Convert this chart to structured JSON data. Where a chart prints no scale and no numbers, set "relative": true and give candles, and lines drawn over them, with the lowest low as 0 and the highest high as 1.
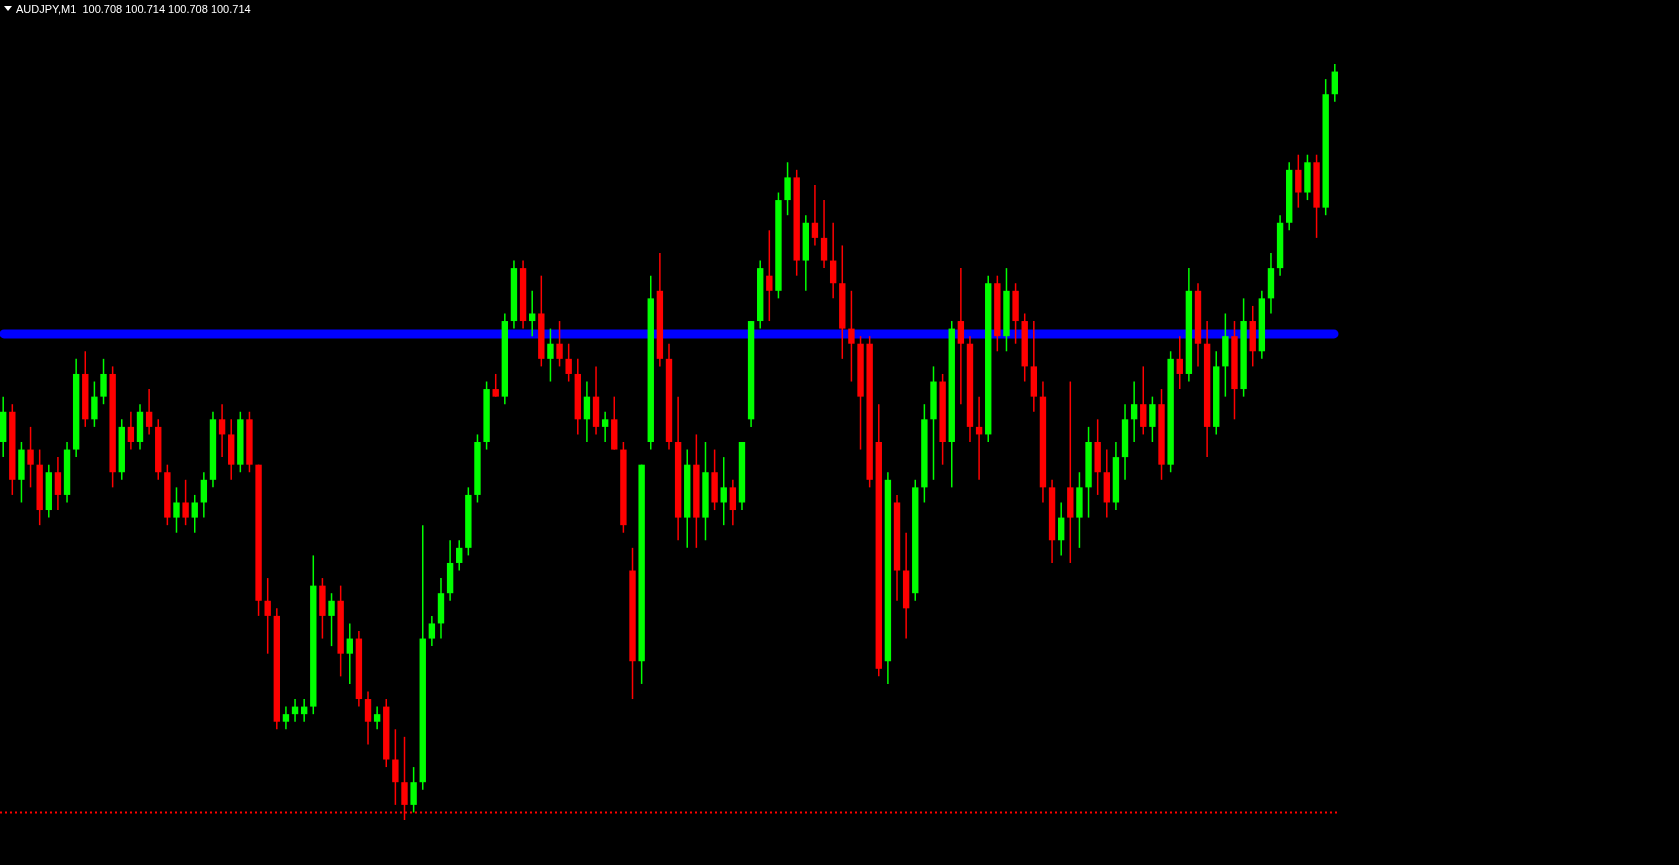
{
  "chart_data": {
    "type": "candlestick",
    "title": "AUDJPY,M1  100.708 100.714 100.708 100.714",
    "relative": true,
    "categories": [
      null,
      null,
      null,
      null,
      null,
      null,
      null,
      null,
      null,
      null,
      null,
      null,
      null,
      null,
      null,
      null,
      null,
      null,
      null,
      null,
      null,
      null,
      null,
      null,
      null,
      null,
      null,
      null,
      null,
      null,
      null,
      null,
      null,
      null,
      null,
      null,
      null,
      null,
      null,
      null,
      null,
      null,
      null,
      null,
      null,
      null,
      null,
      null,
      null,
      null,
      null,
      null,
      null,
      null,
      null,
      null,
      null,
      null,
      null,
      null,
      null,
      null,
      null,
      null,
      null,
      null,
      null,
      null,
      null,
      null,
      null,
      null,
      null,
      null,
      null,
      null,
      null,
      null,
      null,
      null,
      null,
      null,
      null,
      null,
      null,
      null,
      null,
      null,
      null,
      null,
      null,
      null,
      null,
      null,
      null,
      null,
      null,
      null,
      null,
      null,
      null,
      null,
      null,
      null,
      null,
      null,
      null,
      null,
      null,
      null,
      null,
      null,
      null,
      null,
      null,
      null,
      null,
      null,
      null,
      null,
      null,
      null,
      null,
      null,
      null,
      null,
      null,
      null,
      null,
      null,
      null,
      null,
      null,
      null,
      null,
      null,
      null,
      null,
      null,
      null,
      null,
      null,
      null,
      null,
      null,
      null,
      null
    ],
    "ohlc": [
      [
        0.5,
        0.56,
        0.48,
        0.54
      ],
      [
        0.54,
        0.55,
        0.43,
        0.45
      ],
      [
        0.45,
        0.5,
        0.42,
        0.49
      ],
      [
        0.49,
        0.52,
        0.44,
        0.47
      ],
      [
        0.47,
        0.49,
        0.39,
        0.41
      ],
      [
        0.41,
        0.47,
        0.4,
        0.46
      ],
      [
        0.46,
        0.48,
        0.41,
        0.43
      ],
      [
        0.43,
        0.5,
        0.42,
        0.49
      ],
      [
        0.49,
        0.61,
        0.48,
        0.59
      ],
      [
        0.59,
        0.62,
        0.52,
        0.53
      ],
      [
        0.53,
        0.58,
        0.52,
        0.56
      ],
      [
        0.56,
        0.61,
        0.55,
        0.59
      ],
      [
        0.59,
        0.6,
        0.44,
        0.46
      ],
      [
        0.46,
        0.53,
        0.45,
        0.52
      ],
      [
        0.52,
        0.54,
        0.49,
        0.5
      ],
      [
        0.5,
        0.55,
        0.49,
        0.54
      ],
      [
        0.54,
        0.57,
        0.51,
        0.52
      ],
      [
        0.52,
        0.53,
        0.45,
        0.46
      ],
      [
        0.46,
        0.47,
        0.39,
        0.4
      ],
      [
        0.4,
        0.44,
        0.38,
        0.42
      ],
      [
        0.42,
        0.45,
        0.39,
        0.4
      ],
      [
        0.4,
        0.43,
        0.38,
        0.42
      ],
      [
        0.42,
        0.46,
        0.4,
        0.45
      ],
      [
        0.45,
        0.54,
        0.44,
        0.53
      ],
      [
        0.53,
        0.55,
        0.48,
        0.51
      ],
      [
        0.51,
        0.53,
        0.45,
        0.47
      ],
      [
        0.47,
        0.54,
        0.46,
        0.53
      ],
      [
        0.53,
        0.54,
        0.46,
        0.47
      ],
      [
        0.47,
        0.47,
        0.27,
        0.29
      ],
      [
        0.29,
        0.32,
        0.22,
        0.27
      ],
      [
        0.27,
        0.28,
        0.12,
        0.13
      ],
      [
        0.13,
        0.15,
        0.12,
        0.14
      ],
      [
        0.14,
        0.16,
        0.13,
        0.15
      ],
      [
        0.14,
        0.16,
        0.13,
        0.15
      ],
      [
        0.15,
        0.35,
        0.14,
        0.31
      ],
      [
        0.31,
        0.32,
        0.24,
        0.27
      ],
      [
        0.27,
        0.3,
        0.23,
        0.29
      ],
      [
        0.29,
        0.31,
        0.19,
        0.22
      ],
      [
        0.22,
        0.26,
        0.18,
        0.24
      ],
      [
        0.24,
        0.25,
        0.15,
        0.16
      ],
      [
        0.16,
        0.17,
        0.1,
        0.13
      ],
      [
        0.13,
        0.15,
        0.12,
        0.14
      ],
      [
        0.15,
        0.16,
        0.07,
        0.08
      ],
      [
        0.08,
        0.12,
        0.02,
        0.05
      ],
      [
        0.05,
        0.11,
        0.0,
        0.02
      ],
      [
        0.02,
        0.07,
        0.01,
        0.05
      ],
      [
        0.05,
        0.39,
        0.04,
        0.24
      ],
      [
        0.24,
        0.27,
        0.23,
        0.26
      ],
      [
        0.26,
        0.32,
        0.24,
        0.3
      ],
      [
        0.3,
        0.37,
        0.29,
        0.34
      ],
      [
        0.34,
        0.37,
        0.33,
        0.36
      ],
      [
        0.36,
        0.44,
        0.35,
        0.43
      ],
      [
        0.43,
        0.51,
        0.42,
        0.5
      ],
      [
        0.5,
        0.58,
        0.49,
        0.57
      ],
      [
        0.57,
        0.59,
        0.56,
        0.56
      ],
      [
        0.56,
        0.67,
        0.55,
        0.66
      ],
      [
        0.66,
        0.74,
        0.65,
        0.73
      ],
      [
        0.73,
        0.74,
        0.65,
        0.66
      ],
      [
        0.66,
        0.7,
        0.64,
        0.67
      ],
      [
        0.67,
        0.72,
        0.6,
        0.61
      ],
      [
        0.61,
        0.65,
        0.58,
        0.63
      ],
      [
        0.63,
        0.66,
        0.6,
        0.61
      ],
      [
        0.61,
        0.63,
        0.58,
        0.59
      ],
      [
        0.59,
        0.61,
        0.51,
        0.53
      ],
      [
        0.53,
        0.58,
        0.5,
        0.56
      ],
      [
        0.56,
        0.6,
        0.51,
        0.52
      ],
      [
        0.52,
        0.54,
        0.5,
        0.53
      ],
      [
        0.53,
        0.56,
        0.49,
        0.49
      ],
      [
        0.49,
        0.5,
        0.38,
        0.39
      ],
      [
        0.33,
        0.36,
        0.16,
        0.21
      ],
      [
        0.21,
        0.47,
        0.18,
        0.47
      ],
      [
        0.5,
        0.72,
        0.49,
        0.69
      ],
      [
        0.7,
        0.75,
        0.6,
        0.61
      ],
      [
        0.61,
        0.63,
        0.49,
        0.5
      ],
      [
        0.5,
        0.56,
        0.37,
        0.4
      ],
      [
        0.4,
        0.49,
        0.36,
        0.47
      ],
      [
        0.47,
        0.51,
        0.36,
        0.4
      ],
      [
        0.4,
        0.5,
        0.37,
        0.46
      ],
      [
        0.46,
        0.49,
        0.41,
        0.42
      ],
      [
        0.42,
        0.48,
        0.39,
        0.44
      ],
      [
        0.44,
        0.45,
        0.39,
        0.41
      ],
      [
        0.42,
        0.5,
        0.41,
        0.5
      ],
      [
        0.53,
        0.66,
        0.52,
        0.66
      ],
      [
        0.66,
        0.74,
        0.65,
        0.73
      ],
      [
        0.72,
        0.78,
        0.66,
        0.7
      ],
      [
        0.7,
        0.83,
        0.69,
        0.82
      ],
      [
        0.82,
        0.87,
        0.8,
        0.85
      ],
      [
        0.85,
        0.86,
        0.72,
        0.74
      ],
      [
        0.74,
        0.8,
        0.7,
        0.79
      ],
      [
        0.79,
        0.84,
        0.76,
        0.77
      ],
      [
        0.77,
        0.82,
        0.73,
        0.74
      ],
      [
        0.74,
        0.79,
        0.69,
        0.71
      ],
      [
        0.71,
        0.76,
        0.61,
        0.65
      ],
      [
        0.65,
        0.7,
        0.58,
        0.63
      ],
      [
        0.63,
        0.64,
        0.49,
        0.56
      ],
      [
        0.63,
        0.64,
        0.44,
        0.45
      ],
      [
        0.5,
        0.55,
        0.19,
        0.2
      ],
      [
        0.21,
        0.46,
        0.18,
        0.45
      ],
      [
        0.42,
        0.43,
        0.29,
        0.33
      ],
      [
        0.33,
        0.38,
        0.24,
        0.28
      ],
      [
        0.3,
        0.45,
        0.29,
        0.44
      ],
      [
        0.44,
        0.55,
        0.42,
        0.53
      ],
      [
        0.53,
        0.6,
        0.45,
        0.58
      ],
      [
        0.58,
        0.59,
        0.47,
        0.5
      ],
      [
        0.5,
        0.66,
        0.44,
        0.65
      ],
      [
        0.66,
        0.73,
        0.55,
        0.63
      ],
      [
        0.63,
        0.64,
        0.5,
        0.52
      ],
      [
        0.52,
        0.56,
        0.45,
        0.51
      ],
      [
        0.51,
        0.72,
        0.5,
        0.71
      ],
      [
        0.71,
        0.72,
        0.62,
        0.64
      ],
      [
        0.64,
        0.73,
        0.62,
        0.7
      ],
      [
        0.7,
        0.71,
        0.63,
        0.66
      ],
      [
        0.66,
        0.67,
        0.58,
        0.6
      ],
      [
        0.6,
        0.66,
        0.54,
        0.56
      ],
      [
        0.56,
        0.58,
        0.42,
        0.44
      ],
      [
        0.44,
        0.45,
        0.34,
        0.37
      ],
      [
        0.37,
        0.42,
        0.35,
        0.4
      ],
      [
        0.44,
        0.58,
        0.34,
        0.4
      ],
      [
        0.4,
        0.46,
        0.36,
        0.44
      ],
      [
        0.44,
        0.52,
        0.4,
        0.5
      ],
      [
        0.5,
        0.53,
        0.43,
        0.46
      ],
      [
        0.46,
        0.49,
        0.4,
        0.42
      ],
      [
        0.42,
        0.5,
        0.41,
        0.48
      ],
      [
        0.48,
        0.55,
        0.45,
        0.53
      ],
      [
        0.53,
        0.58,
        0.5,
        0.55
      ],
      [
        0.55,
        0.6,
        0.51,
        0.52
      ],
      [
        0.52,
        0.56,
        0.5,
        0.55
      ],
      [
        0.55,
        0.57,
        0.45,
        0.47
      ],
      [
        0.47,
        0.62,
        0.46,
        0.61
      ],
      [
        0.61,
        0.64,
        0.57,
        0.59
      ],
      [
        0.59,
        0.73,
        0.58,
        0.7
      ],
      [
        0.7,
        0.71,
        0.6,
        0.63
      ],
      [
        0.63,
        0.66,
        0.48,
        0.52
      ],
      [
        0.52,
        0.62,
        0.51,
        0.6
      ],
      [
        0.6,
        0.67,
        0.56,
        0.64
      ],
      [
        0.64,
        0.66,
        0.53,
        0.57
      ],
      [
        0.57,
        0.69,
        0.56,
        0.66
      ],
      [
        0.66,
        0.68,
        0.6,
        0.62
      ],
      [
        0.62,
        0.7,
        0.61,
        0.69
      ],
      [
        0.69,
        0.75,
        0.67,
        0.73
      ],
      [
        0.73,
        0.8,
        0.72,
        0.79
      ],
      [
        0.79,
        0.87,
        0.78,
        0.86
      ],
      [
        0.86,
        0.88,
        0.81,
        0.83
      ],
      [
        0.83,
        0.88,
        0.82,
        0.87
      ],
      [
        0.87,
        0.88,
        0.77,
        0.81
      ],
      [
        0.81,
        0.98,
        0.8,
        0.96
      ],
      [
        0.96,
        1.0,
        0.95,
        0.99
      ]
    ],
    "colors": [
      "#00ff00",
      "#ff0000",
      "#00ff00",
      "#ff0000",
      "#ff0000",
      "#00ff00",
      "#ff0000",
      "#00ff00",
      "#00ff00",
      "#ff0000",
      "#00ff00",
      "#00ff00",
      "#ff0000",
      "#00ff00",
      "#ff0000",
      "#00ff00",
      "#ff0000",
      "#ff0000",
      "#ff0000",
      "#00ff00",
      "#ff0000",
      "#00ff00",
      "#00ff00",
      "#00ff00",
      "#ff0000",
      "#ff0000",
      "#00ff00",
      "#ff0000",
      "#ff0000",
      "#ff0000",
      "#ff0000",
      "#00ff00",
      "#00ff00",
      "#00ff00",
      "#00ff00",
      "#ff0000",
      "#00ff00",
      "#ff0000",
      "#00ff00",
      "#ff0000",
      "#ff0000",
      "#00ff00",
      "#ff0000",
      "#ff0000",
      "#ff0000",
      "#00ff00",
      "#00ff00",
      "#00ff00",
      "#00ff00",
      "#00ff00",
      "#00ff00",
      "#00ff00",
      "#00ff00",
      "#00ff00",
      "#ff0000",
      "#00ff00",
      "#00ff00",
      "#ff0000",
      "#00ff00",
      "#ff0000",
      "#00ff00",
      "#ff0000",
      "#ff0000",
      "#ff0000",
      "#00ff00",
      "#ff0000",
      "#00ff00",
      "#ff0000",
      "#ff0000",
      "#ff0000",
      "#00ff00",
      "#00ff00",
      "#ff0000",
      "#ff0000",
      "#ff0000",
      "#00ff00",
      "#ff0000",
      "#00ff00",
      "#ff0000",
      "#00ff00",
      "#ff0000",
      "#00ff00",
      "#00ff00",
      "#00ff00",
      "#ff0000",
      "#00ff00",
      "#00ff00",
      "#ff0000",
      "#00ff00",
      "#ff0000",
      "#ff0000",
      "#ff0000",
      "#ff0000",
      "#ff0000",
      "#ff0000",
      "#ff0000",
      "#ff0000",
      "#00ff00",
      "#ff0000",
      "#ff0000",
      "#00ff00",
      "#00ff00",
      "#00ff00",
      "#ff0000",
      "#00ff00",
      "#ff0000",
      "#ff0000",
      "#ff0000",
      "#00ff00",
      "#ff0000",
      "#00ff00",
      "#ff0000",
      "#ff0000",
      "#ff0000",
      "#ff0000",
      "#ff0000",
      "#00ff00",
      "#ff0000",
      "#00ff00",
      "#00ff00",
      "#ff0000",
      "#ff0000",
      "#00ff00",
      "#00ff00",
      "#00ff00",
      "#ff0000",
      "#00ff00",
      "#ff0000",
      "#00ff00",
      "#ff0000",
      "#00ff00",
      "#ff0000",
      "#ff0000",
      "#00ff00",
      "#00ff00",
      "#ff0000",
      "#00ff00",
      "#ff0000",
      "#00ff00",
      "#00ff00",
      "#00ff00",
      "#00ff00",
      "#ff0000",
      "#00ff00",
      "#ff0000",
      "#00ff00",
      "#00ff00"
    ],
    "ref_lines": [
      {
        "axis": "y",
        "value": 0.643,
        "color": "#0000ff",
        "line_style": "solid"
      },
      {
        "axis": "y",
        "value": 0.01,
        "color": "#ff0000",
        "line_style": "dotted"
      }
    ]
  }
}
